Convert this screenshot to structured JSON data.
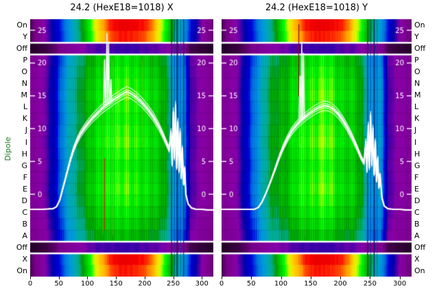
{
  "titles": {
    "left": "24.2 (HexE18=1018) X",
    "right": "24.2 (HexE18=1018) Y"
  },
  "axis": {
    "dipole_label": "Dipole",
    "row_labels": [
      "On",
      "Y",
      "Off",
      "P",
      "O",
      "N",
      "M",
      "L",
      "K",
      "J",
      "I",
      "H",
      "G",
      "F",
      "E",
      "D",
      "C",
      "B",
      "A",
      "Off",
      "X",
      "On"
    ],
    "x_ticks": [
      0,
      50,
      100,
      150,
      200,
      250,
      300
    ],
    "inner_y_ticks": [
      25,
      20,
      15,
      10,
      5,
      0
    ]
  },
  "colors": {
    "background": "#ffffff",
    "text": "#000000",
    "dipole_label": "#1a7a1a",
    "inner_tick": "#ffffff",
    "profile_line": "#ffffff"
  },
  "chart_data": {
    "type": "heatmap",
    "colormap": "nipy_spectral-like",
    "colormap_stops": [
      [
        0.0,
        "#000000"
      ],
      [
        0.05,
        "#770088"
      ],
      [
        0.1,
        "#8800a8"
      ],
      [
        0.15,
        "#0000aa"
      ],
      [
        0.2,
        "#0000dd"
      ],
      [
        0.25,
        "#0077dd"
      ],
      [
        0.3,
        "#0099dd"
      ],
      [
        0.35,
        "#00aaaa"
      ],
      [
        0.4,
        "#00aa88"
      ],
      [
        0.45,
        "#009900"
      ],
      [
        0.5,
        "#00bb00"
      ],
      [
        0.55,
        "#00dd00"
      ],
      [
        0.6,
        "#00ff00"
      ],
      [
        0.65,
        "#bbff00"
      ],
      [
        0.7,
        "#eeee00"
      ],
      [
        0.75,
        "#ffcc00"
      ],
      [
        0.8,
        "#ff9900"
      ],
      [
        0.85,
        "#ff0000"
      ],
      [
        0.9,
        "#dd0000"
      ],
      [
        0.95,
        "#cc0000"
      ],
      [
        1.0,
        "#cccccc"
      ]
    ],
    "x_range": [
      0,
      320
    ],
    "x_ticks": [
      0,
      50,
      100,
      150,
      200,
      250,
      300
    ],
    "y_inner_ticks": [
      25,
      20,
      15,
      10,
      5,
      0
    ],
    "row_labels": [
      "On",
      "Y",
      "Off",
      "P",
      "O",
      "N",
      "M",
      "L",
      "K",
      "J",
      "I",
      "H",
      "G",
      "F",
      "E",
      "D",
      "C",
      "B",
      "A",
      "Off",
      "X",
      "On"
    ],
    "sections": [
      {
        "rows": 2,
        "kind": "rainbow"
      },
      {
        "rows": 1,
        "kind": "off"
      },
      {
        "rows": 16,
        "kind": "central"
      },
      {
        "rows": 1,
        "kind": "off"
      },
      {
        "rows": 2,
        "kind": "rainbow"
      }
    ],
    "row_gain": [
      0.93,
      0.97,
      1.0,
      1.02,
      1.0,
      0.98,
      1.01,
      1.03,
      1.0,
      0.97,
      1.0,
      1.02,
      0.99,
      0.95,
      0.9,
      0.84
    ],
    "heat_profile": {
      "x": [
        0,
        15,
        30,
        45,
        60,
        75,
        90,
        105,
        120,
        135,
        150,
        165,
        180,
        195,
        210,
        225,
        235,
        243,
        250,
        258,
        265,
        272,
        280,
        295,
        310,
        320
      ],
      "v": [
        0.07,
        0.09,
        0.12,
        0.19,
        0.3,
        0.39,
        0.45,
        0.5,
        0.54,
        0.57,
        0.6,
        0.62,
        0.6,
        0.57,
        0.54,
        0.5,
        0.45,
        0.38,
        0.3,
        0.28,
        0.31,
        0.22,
        0.13,
        0.1,
        0.08,
        0.07
      ]
    },
    "rainbow_profile": {
      "x": [
        0,
        15,
        30,
        45,
        60,
        75,
        90,
        105,
        120,
        140,
        160,
        180,
        200,
        215,
        225,
        240,
        255,
        270,
        285,
        300,
        310,
        320
      ],
      "v": [
        0.03,
        0.07,
        0.12,
        0.18,
        0.25,
        0.33,
        0.45,
        0.6,
        0.75,
        0.85,
        0.88,
        0.87,
        0.85,
        0.8,
        0.7,
        0.55,
        0.4,
        0.28,
        0.17,
        0.1,
        0.06,
        0.04
      ]
    },
    "bundle": [
      0.955,
      0.98,
      1.02,
      1.045
    ],
    "panels": [
      {
        "title": "24.2 (HexE18=1018) X",
        "profile_line": {
          "x": [
            0,
            20,
            40,
            46,
            52,
            58,
            64,
            70,
            76,
            82,
            88,
            95,
            102,
            110,
            118,
            125,
            132,
            140,
            147,
            153,
            160,
            168,
            175,
            185,
            195,
            205,
            215,
            225,
            232,
            238,
            243,
            246,
            248,
            250,
            252,
            254,
            256,
            258,
            260,
            262,
            264,
            266,
            268,
            270,
            272,
            276,
            282,
            290,
            300,
            310,
            320
          ],
          "y": [
            -2.3,
            -2.3,
            -2.2,
            -1.9,
            -0.8,
            1.2,
            3.2,
            5.2,
            6.9,
            8.2,
            9.2,
            10.1,
            10.9,
            11.7,
            12.4,
            13.0,
            13.5,
            14.0,
            14.5,
            14.8,
            15.2,
            15.6,
            15.4,
            14.8,
            14.0,
            13.0,
            11.8,
            10.3,
            9.0,
            7.8,
            6.8,
            9.5,
            4.5,
            12.5,
            5.5,
            13.5,
            4.0,
            11.0,
            3.5,
            9.5,
            2.5,
            7.0,
            1.5,
            4.0,
            0.0,
            -1.5,
            -2.1,
            -2.3,
            -2.3,
            -2.4,
            -2.4
          ]
        },
        "spikes": [
          {
            "x": 130,
            "y": 20.5
          },
          {
            "x": 134,
            "y": 24.5
          },
          {
            "x": 137,
            "y": 23.2
          },
          {
            "x": 141,
            "y": 17.5
          }
        ],
        "stripes": [
          {
            "x": 130,
            "w": 1.2,
            "color": "#cc2200",
            "y0": 0.54,
            "y1": 0.82,
            "alpha": 0.85
          },
          {
            "x": 127,
            "w": 1.0,
            "color": "#aaee00",
            "y0": 0.16,
            "y1": 0.84,
            "alpha": 0.35
          },
          {
            "x": 144,
            "w": 1.0,
            "color": "#ccff33",
            "y0": 0.16,
            "y1": 0.84,
            "alpha": 0.3
          },
          {
            "x": 196,
            "w": 1.0,
            "color": "#ffee00",
            "y0": 0.16,
            "y1": 0.5,
            "alpha": 0.25
          },
          {
            "x": 247,
            "w": 1.6,
            "color": "#001a66",
            "y0": 0,
            "y1": 1,
            "alpha": 0.75
          },
          {
            "x": 252,
            "w": 1.1,
            "color": "#0033aa",
            "y0": 0,
            "y1": 1,
            "alpha": 0.6
          },
          {
            "x": 257,
            "w": 2.2,
            "color": "#001a66",
            "y0": 0,
            "y1": 1,
            "alpha": 0.75
          },
          {
            "x": 263,
            "w": 1.1,
            "color": "#0044bb",
            "y0": 0,
            "y1": 1,
            "alpha": 0.55
          },
          {
            "x": 268,
            "w": 1.6,
            "color": "#001a66",
            "y0": 0,
            "y1": 1,
            "alpha": 0.7
          }
        ]
      },
      {
        "title": "24.2 (HexE18=1018) Y",
        "profile_line": {
          "x": [
            0,
            30,
            55,
            62,
            68,
            75,
            82,
            90,
            97,
            104,
            111,
            118,
            125,
            132,
            140,
            148,
            156,
            164,
            172,
            180,
            188,
            196,
            204,
            212,
            220,
            228,
            235,
            240,
            243,
            245,
            247,
            249,
            251,
            253,
            255,
            257,
            259,
            261,
            263,
            265,
            267,
            270,
            274,
            280,
            290,
            300,
            310,
            320
          ],
          "y": [
            -2.3,
            -2.3,
            -2.3,
            -2.0,
            -1.2,
            0.2,
            1.8,
            3.8,
            5.6,
            7.2,
            8.5,
            9.6,
            10.4,
            11.1,
            11.7,
            12.3,
            12.8,
            13.2,
            13.5,
            13.4,
            13.0,
            12.3,
            11.3,
            10.1,
            8.7,
            7.1,
            5.6,
            4.8,
            8.0,
            3.5,
            10.5,
            4.0,
            12.0,
            4.5,
            10.0,
            3.0,
            8.0,
            2.0,
            5.5,
            1.0,
            3.0,
            -0.5,
            -1.8,
            -2.2,
            -2.3,
            -2.3,
            -2.4,
            -2.4
          ]
        },
        "spikes": [
          {
            "x": 132,
            "y": 18.0
          },
          {
            "x": 135,
            "y": 23.0
          },
          {
            "x": 138,
            "y": 21.5
          }
        ],
        "stripes": [
          {
            "x": 130,
            "w": 1.3,
            "color": "#880000",
            "y0": 0.02,
            "y1": 0.3,
            "alpha": 0.9
          },
          {
            "x": 141,
            "w": 1.0,
            "color": "#aaee00",
            "y0": 0.16,
            "y1": 0.84,
            "alpha": 0.3
          },
          {
            "x": 246,
            "w": 1.6,
            "color": "#001a66",
            "y0": 0,
            "y1": 1,
            "alpha": 0.75
          },
          {
            "x": 251,
            "w": 1.1,
            "color": "#0033aa",
            "y0": 0,
            "y1": 1,
            "alpha": 0.6
          },
          {
            "x": 257,
            "w": 2.0,
            "color": "#001a66",
            "y0": 0,
            "y1": 1,
            "alpha": 0.75
          },
          {
            "x": 262,
            "w": 1.1,
            "color": "#0044bb",
            "y0": 0,
            "y1": 1,
            "alpha": 0.55
          }
        ]
      }
    ]
  }
}
